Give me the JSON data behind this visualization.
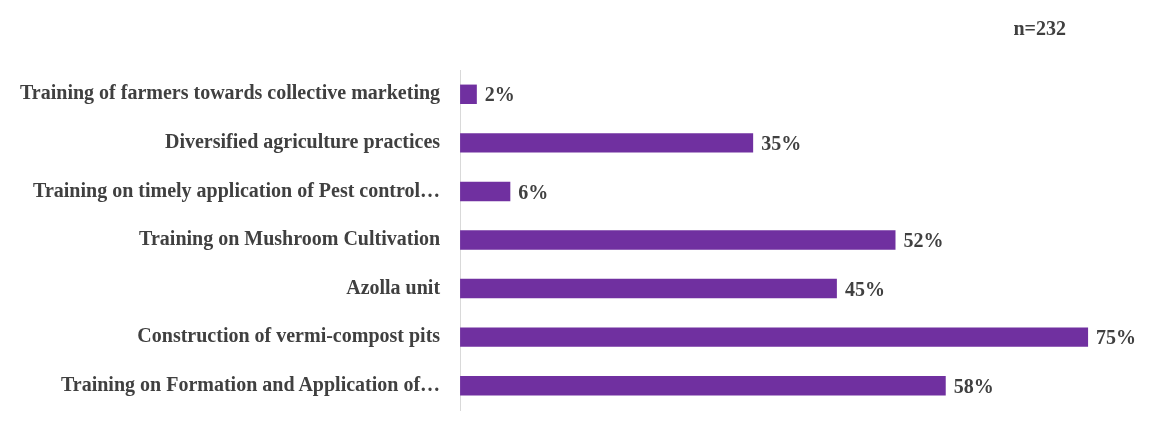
{
  "chart_data": {
    "type": "bar",
    "orientation": "horizontal",
    "categories": [
      "Training of farmers towards collective marketing",
      "Diversified agriculture practices",
      "Training on timely application of Pest control…",
      "Training on Mushroom Cultivation",
      "Azolla unit",
      "Construction of vermi-compost pits",
      "Training on Formation and Application of…"
    ],
    "values": [
      2,
      35,
      6,
      52,
      45,
      75,
      58
    ],
    "value_labels": [
      "2%",
      "35%",
      "6%",
      "52%",
      "45%",
      "75%",
      "58%"
    ],
    "color": "#7030a0",
    "annotations": [
      "n=232"
    ]
  }
}
